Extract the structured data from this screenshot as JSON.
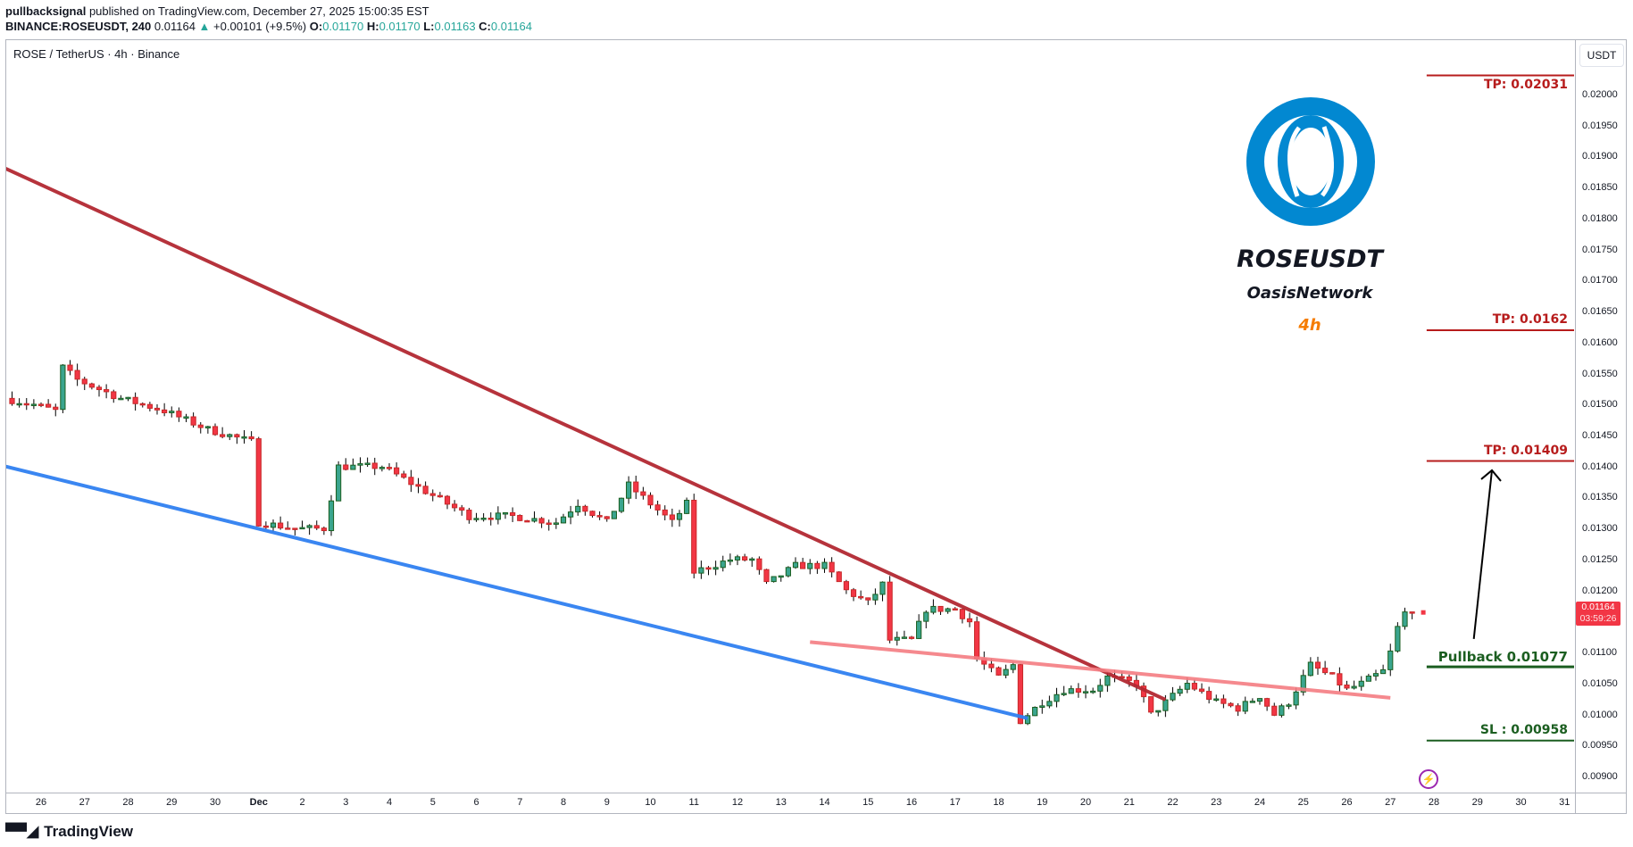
{
  "header": {
    "author": "pullbacksignal",
    "published": "published on TradingView.com, December 27, 2025 15:00:35 EST",
    "symbol_interval": "BINANCE:ROSEUSDT, 240",
    "last": "0.01164",
    "change": "+0.00101 (+9.5%)",
    "o_label": "O:",
    "o": "0.01170",
    "h_label": "H:",
    "h": "0.01170",
    "l_label": "L:",
    "l": "0.01163",
    "c_label": "C:",
    "c": "0.01164"
  },
  "legend": "ROSE / TetherUS · 4h · Binance",
  "currency": "USDT",
  "price_tag": {
    "price": "0.01164",
    "countdown": "03:59:26",
    "color": "#f23645"
  },
  "overlay": {
    "title": "ROSEUSDT",
    "subtitle": "OasisNetwork",
    "interval": "4h",
    "interval_color": "#f57c00",
    "logo_color": "#0288d1"
  },
  "levels": [
    {
      "label": "TP: 0.02031",
      "price": 0.02031,
      "color": "#b71c1c",
      "text_pos": "below"
    },
    {
      "label": "TP: 0.0162",
      "price": 0.0162,
      "color": "#b71c1c",
      "text_pos": "above"
    },
    {
      "label": "TP: 0.01409",
      "price": 0.01409,
      "color": "#b71c1c",
      "text_pos": "above"
    },
    {
      "label": "Pullback 0.01077",
      "price": 0.01077,
      "color": "#1b5e20",
      "text_pos": "above"
    },
    {
      "label": "SL : 0.00958",
      "price": 0.00958,
      "color": "#1b5e20",
      "text_pos": "above"
    }
  ],
  "brand": "TradingView",
  "chart_data": {
    "type": "candlestick",
    "interval": "4h",
    "colors": {
      "up": "#3aa58e",
      "down": "#f23645",
      "up_border": "#1b5e20",
      "down_border": "#c62828"
    },
    "ylim": [
      0.00875,
      0.0212
    ],
    "xlim": [
      "2025-11-25T02:00",
      "2025-12-31T05:00"
    ],
    "price_ticks": [
      "0.02000",
      "0.01950",
      "0.01900",
      "0.01850",
      "0.01800",
      "0.01750",
      "0.01700",
      "0.01650",
      "0.01600",
      "0.01550",
      "0.01500",
      "0.01450",
      "0.01400",
      "0.01350",
      "0.01300",
      "0.01250",
      "0.01200",
      "0.01150",
      "0.01100",
      "0.01050",
      "0.01000",
      "0.00950",
      "0.00900"
    ],
    "time_ticks": [
      "26",
      "27",
      "28",
      "29",
      "30",
      "Dec",
      "2",
      "3",
      "4",
      "5",
      "6",
      "7",
      "8",
      "9",
      "10",
      "11",
      "12",
      "13",
      "14",
      "15",
      "16",
      "17",
      "18",
      "19",
      "20",
      "21",
      "22",
      "23",
      "24",
      "25",
      "26",
      "27",
      "28",
      "29",
      "30",
      "31"
    ],
    "price_path": [
      [
        "2025-11-25T08:00",
        0.0151
      ],
      [
        "2025-11-26T00:00",
        0.015
      ],
      [
        "2025-11-26T12:00",
        0.0149
      ],
      [
        "2025-11-26T16:00",
        0.0156
      ],
      [
        "2025-11-27T00:00",
        0.0154
      ],
      [
        "2025-11-28T00:00",
        0.0151
      ],
      [
        "2025-11-29T00:00",
        0.0149
      ],
      [
        "2025-11-30T00:00",
        0.0146
      ],
      [
        "2025-12-01T00:00",
        0.0144
      ],
      [
        "2025-12-01T04:00",
        0.0131
      ],
      [
        "2025-12-02T00:00",
        0.013
      ],
      [
        "2025-12-02T16:00",
        0.013
      ],
      [
        "2025-12-03T00:00",
        0.014
      ],
      [
        "2025-12-04T00:00",
        0.014
      ],
      [
        "2025-12-05T00:00",
        0.0136
      ],
      [
        "2025-12-06T00:00",
        0.0132
      ],
      [
        "2025-12-07T00:00",
        0.0132
      ],
      [
        "2025-12-08T00:00",
        0.0131
      ],
      [
        "2025-12-08T12:00",
        0.0134
      ],
      [
        "2025-12-09T04:00",
        0.0131
      ],
      [
        "2025-12-09T16:00",
        0.0137
      ],
      [
        "2025-12-10T00:00",
        0.0135
      ],
      [
        "2025-12-10T16:00",
        0.0131
      ],
      [
        "2025-12-11T00:00",
        0.0134
      ],
      [
        "2025-12-11T04:00",
        0.0123
      ],
      [
        "2025-12-12T00:00",
        0.0125
      ],
      [
        "2025-12-12T12:00",
        0.0125
      ],
      [
        "2025-12-12T20:00",
        0.0121
      ],
      [
        "2025-12-13T12:00",
        0.0124
      ],
      [
        "2025-12-14T04:00",
        0.0124
      ],
      [
        "2025-12-14T16:00",
        0.012
      ],
      [
        "2025-12-15T04:00",
        0.0118
      ],
      [
        "2025-12-15T12:00",
        0.0121
      ],
      [
        "2025-12-15T16:00",
        0.0112
      ],
      [
        "2025-12-16T04:00",
        0.0112
      ],
      [
        "2025-12-16T12:00",
        0.0117
      ],
      [
        "2025-12-17T04:00",
        0.0117
      ],
      [
        "2025-12-17T12:00",
        0.0115
      ],
      [
        "2025-12-17T16:00",
        0.0109
      ],
      [
        "2025-12-18T04:00",
        0.0106
      ],
      [
        "2025-12-18T12:00",
        0.0108
      ],
      [
        "2025-12-18T16:00",
        0.0099
      ],
      [
        "2025-12-19T04:00",
        0.0102
      ],
      [
        "2025-12-19T16:00",
        0.0104
      ],
      [
        "2025-12-20T08:00",
        0.0104
      ],
      [
        "2025-12-20T16:00",
        0.0106
      ],
      [
        "2025-12-21T08:00",
        0.0105
      ],
      [
        "2025-12-21T16:00",
        0.01
      ],
      [
        "2025-12-22T04:00",
        0.0103
      ],
      [
        "2025-12-22T12:00",
        0.0105
      ],
      [
        "2025-12-23T04:00",
        0.0102
      ],
      [
        "2025-12-23T16:00",
        0.0101
      ],
      [
        "2025-12-24T04:00",
        0.0103
      ],
      [
        "2025-12-24T12:00",
        0.01
      ],
      [
        "2025-12-24T20:00",
        0.0102
      ],
      [
        "2025-12-25T04:00",
        0.0106
      ],
      [
        "2025-12-25T08:00",
        0.0108
      ],
      [
        "2025-12-25T20:00",
        0.0106
      ],
      [
        "2025-12-26T04:00",
        0.0104
      ],
      [
        "2025-12-26T12:00",
        0.0105
      ],
      [
        "2025-12-27T00:00",
        0.0107
      ],
      [
        "2025-12-27T04:00",
        0.011
      ],
      [
        "2025-12-27T08:00",
        0.0114
      ],
      [
        "2025-12-27T12:00",
        0.01164
      ]
    ],
    "trendlines": [
      {
        "name": "descending-resistance",
        "color": "#b22832",
        "from": [
          "2025-11-25T02:00",
          0.01884
        ],
        "to": [
          "2025-12-21T20:00",
          0.01024
        ]
      },
      {
        "name": "support",
        "color": "#2f7ff0",
        "from": [
          "2025-11-25T02:00",
          0.01402
        ],
        "to": [
          "2025-12-18T16:00",
          0.00994
        ]
      },
      {
        "name": "neckline",
        "color": "#f47c82",
        "from": [
          "2025-12-13T16:00",
          0.01117
        ],
        "to": [
          "2025-12-27T00:00",
          0.01027
        ]
      }
    ],
    "arrow": {
      "color": "#000000",
      "from": [
        "2025-12-28T22:00",
        0.01122
      ],
      "to": [
        "2025-12-29T08:00",
        0.01394
      ]
    },
    "levels_start": "2025-12-27T20:00"
  }
}
